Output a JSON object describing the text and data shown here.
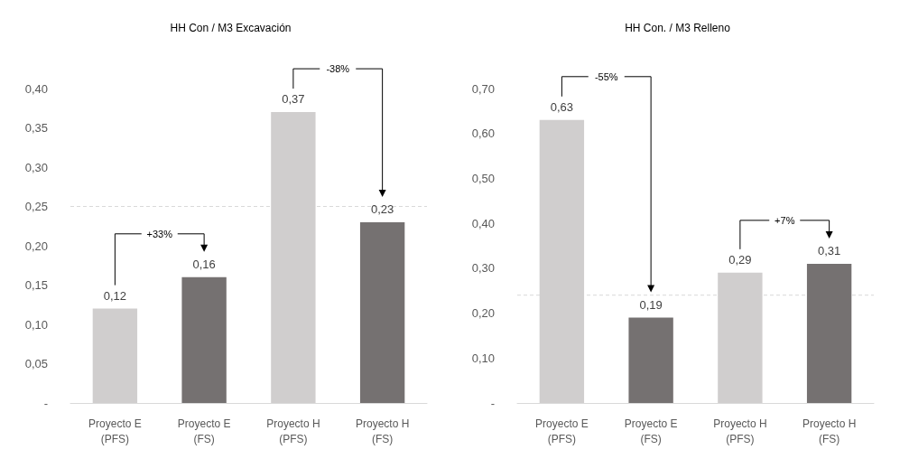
{
  "chart_data": [
    {
      "type": "bar",
      "title": "HH Con / M3 Excavación",
      "categories": [
        "Proyecto E\n(PFS)",
        "Proyecto E\n(FS)",
        "Proyecto H\n(PFS)",
        "Proyecto H\n(FS)"
      ],
      "values": [
        0.12,
        0.16,
        0.37,
        0.23
      ],
      "colors": [
        "#d0cece",
        "#757171",
        "#d0cece",
        "#757171"
      ],
      "value_labels": [
        "0,12",
        "0,16",
        "0,37",
        "0,23"
      ],
      "ylim": [
        0,
        0.4
      ],
      "yticks": [
        {
          "value": 0,
          "label": "-"
        },
        {
          "value": 0.05,
          "label": "0,05"
        },
        {
          "value": 0.1,
          "label": "0,10"
        },
        {
          "value": 0.15,
          "label": "0,15"
        },
        {
          "value": 0.2,
          "label": "0,20"
        },
        {
          "value": 0.25,
          "label": "0,25"
        },
        {
          "value": 0.3,
          "label": "0,30"
        },
        {
          "value": 0.35,
          "label": "0,35"
        },
        {
          "value": 0.4,
          "label": "0,40"
        }
      ],
      "grid": false,
      "ref_lines": [
        {
          "axis": "y",
          "value": 0.25,
          "color": "#d9d9d9",
          "line_style": "dashed"
        }
      ],
      "annotations": [
        "+33%",
        "-38%"
      ]
    },
    {
      "type": "bar",
      "title": "HH Con. / M3 Relleno",
      "categories": [
        "Proyecto E\n(PFS)",
        "Proyecto E\n(FS)",
        "Proyecto H\n(PFS)",
        "Proyecto H\n(FS)"
      ],
      "values": [
        0.63,
        0.19,
        0.29,
        0.31
      ],
      "colors": [
        "#d0cece",
        "#757171",
        "#d0cece",
        "#757171"
      ],
      "value_labels": [
        "0,63",
        "0,19",
        "0,29",
        "0,31"
      ],
      "ylim": [
        0,
        0.7
      ],
      "yticks": [
        {
          "value": 0,
          "label": "-"
        },
        {
          "value": 0.1,
          "label": "0,10"
        },
        {
          "value": 0.2,
          "label": "0,20"
        },
        {
          "value": 0.3,
          "label": "0,30"
        },
        {
          "value": 0.4,
          "label": "0,40"
        },
        {
          "value": 0.5,
          "label": "0,50"
        },
        {
          "value": 0.6,
          "label": "0,60"
        },
        {
          "value": 0.7,
          "label": "0,70"
        }
      ],
      "grid": false,
      "ref_lines": [
        {
          "axis": "y",
          "value": 0.24,
          "color": "#d9d9d9",
          "line_style": "dashed"
        }
      ],
      "annotations": [
        "-55%",
        "+7%"
      ]
    }
  ]
}
